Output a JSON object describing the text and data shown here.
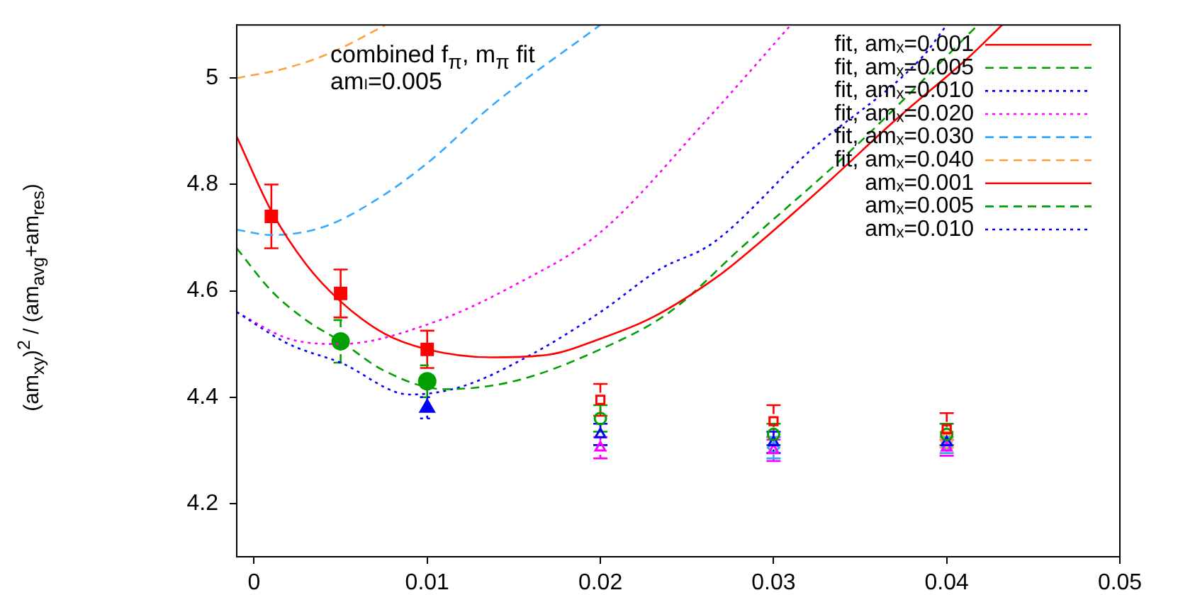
{
  "chart_data": {
    "type": "scatter",
    "ylabel": "(am$_{xy}$)$^{2}$ / (am$_{avg}$+am$_{res}$)",
    "annotations": [
      "combined f$_{π}$, m$_{π}$ fit",
      "amₗ=0.005"
    ],
    "xlim": [
      -0.001,
      0.05
    ],
    "xticks": [
      0,
      0.01,
      0.02,
      0.03,
      0.04,
      0.05
    ],
    "ylim": [
      4.1,
      5.1
    ],
    "yticks": [
      4.2,
      4.4,
      4.6,
      4.8,
      5
    ],
    "grid": false,
    "legend": "top right",
    "series": [
      {
        "name": "fit, amₓ=0.001",
        "type": "line",
        "color": "#ff0000",
        "line_style": "solid",
        "marker": "none",
        "x": [
          -0.001,
          0.001,
          0.003,
          0.005,
          0.0075,
          0.01,
          0.0137,
          0.017,
          0.02,
          0.023,
          0.0269,
          0.0288,
          0.033,
          0.037,
          0.0413,
          0.0432
        ],
        "values": [
          4.89,
          4.75,
          4.65,
          4.58,
          4.52,
          4.49,
          4.475,
          4.48,
          4.51,
          4.55,
          4.63,
          4.68,
          4.8,
          4.92,
          5.04,
          5.1
        ]
      },
      {
        "name": "fit, amₓ=0.005",
        "type": "line",
        "color": "#00a000",
        "line_style": "dashed",
        "marker": "none",
        "x": [
          -0.001,
          0.001,
          0.003,
          0.005,
          0.0075,
          0.011,
          0.015,
          0.02,
          0.024,
          0.0281,
          0.035,
          0.0418
        ],
        "values": [
          4.68,
          4.6,
          4.545,
          4.505,
          4.45,
          4.415,
          4.43,
          4.49,
          4.56,
          4.68,
          4.88,
          5.1
        ]
      },
      {
        "name": "fit, amₓ=0.010",
        "type": "line",
        "color": "#0000ff",
        "line_style": "dotted",
        "marker": "none",
        "x": [
          -0.001,
          0.002,
          0.005,
          0.009,
          0.012,
          0.016,
          0.02,
          0.0234,
          0.0265,
          0.032,
          0.0386,
          0.04
        ],
        "values": [
          4.56,
          4.5,
          4.465,
          4.405,
          4.42,
          4.48,
          4.56,
          4.64,
          4.69,
          4.86,
          5.04,
          5.1
        ]
      },
      {
        "name": "fit, amₓ=0.020",
        "type": "line",
        "color": "#ff00ff",
        "line_style": "dotted",
        "marker": "none",
        "x": [
          -0.001,
          0.002,
          0.005,
          0.0103,
          0.015,
          0.02,
          0.0261,
          0.031
        ],
        "values": [
          4.56,
          4.51,
          4.5,
          4.54,
          4.61,
          4.71,
          4.92,
          5.1
        ]
      },
      {
        "name": "fit, amₓ=0.030",
        "type": "line",
        "color": "#33aaff",
        "line_style": "dashed",
        "marker": "none",
        "x": [
          -0.001,
          0.001,
          0.004,
          0.007,
          0.01,
          0.0138,
          0.02
        ],
        "values": [
          4.715,
          4.705,
          4.72,
          4.77,
          4.84,
          4.95,
          5.1
        ]
      },
      {
        "name": "fit, amₓ=0.040",
        "type": "line",
        "color": "#ffa040",
        "line_style": "dashed",
        "marker": "none",
        "x": [
          -0.001,
          0.002,
          0.0046,
          0.0076
        ],
        "values": [
          5.0,
          5.02,
          5.05,
          5.1
        ]
      },
      {
        "name": "amₓ=0.001",
        "type": "scatter",
        "color": "#ff0000",
        "line_style": "solid",
        "marker": "square",
        "x": [
          0.001,
          0.005,
          0.01
        ],
        "values": [
          4.74,
          4.595,
          4.49
        ],
        "errors": [
          0.06,
          0.045,
          0.035
        ]
      },
      {
        "name": "amₓ=0.005",
        "type": "scatter",
        "color": "#00a000",
        "line_style": "dashed",
        "marker": "circle",
        "x": [
          0.005,
          0.01
        ],
        "values": [
          4.505,
          4.43
        ],
        "errors": [
          0.04,
          0.03
        ]
      },
      {
        "name": "amₓ=0.010",
        "type": "scatter",
        "color": "#0000ff",
        "line_style": "dotted",
        "marker": "triangle",
        "x": [
          0.01
        ],
        "values": [
          4.38
        ],
        "errors": [
          0.02
        ]
      },
      {
        "type": "scatter",
        "color": "#ff0000",
        "marker": "square",
        "x": [
          0.02,
          0.03,
          0.04
        ],
        "values": [
          4.395,
          4.355,
          4.34
        ],
        "errors": [
          0.03,
          0.03,
          0.03
        ]
      },
      {
        "type": "scatter",
        "color": "#00a000",
        "marker": "circle",
        "x": [
          0.02,
          0.03,
          0.04
        ],
        "values": [
          4.36,
          4.33,
          4.33
        ],
        "errors": [
          0.025,
          0.02,
          0.02
        ]
      },
      {
        "type": "scatter",
        "color": "#0000ff",
        "marker": "triangle",
        "x": [
          0.02,
          0.03,
          0.04
        ],
        "values": [
          4.33,
          4.315,
          4.315
        ],
        "errors": [
          0.02,
          0.02,
          null
        ]
      },
      {
        "type": "scatter",
        "color": "#ff00ff",
        "marker": "triangle",
        "x": [
          0.02,
          0.03,
          0.04
        ],
        "values": [
          4.305,
          4.3,
          4.305
        ],
        "errors": [
          0.02,
          0.02,
          0.015
        ]
      },
      {
        "type": "scatter",
        "color": "#33aaff",
        "marker": "diamond",
        "x": [
          0.03,
          0.04
        ],
        "values": [
          4.305,
          4.31
        ],
        "errors": [
          0.02,
          0.015
        ]
      },
      {
        "type": "scatter",
        "color": "#ffa040",
        "x": [
          0.04
        ],
        "values": [
          4.32
        ],
        "errors": [
          0.015
        ]
      }
    ]
  }
}
